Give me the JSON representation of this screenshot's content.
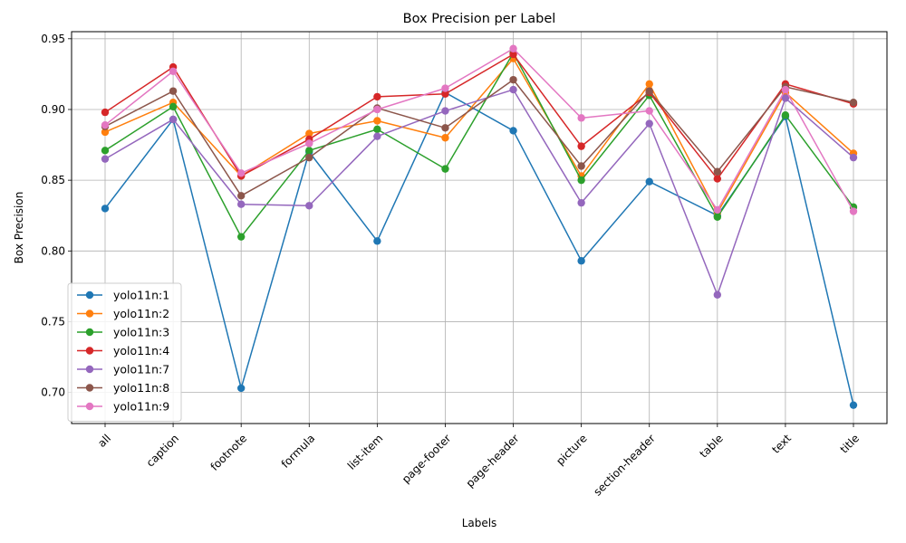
{
  "chart_data": {
    "type": "line",
    "title": "Box Precision per Label",
    "xlabel": "Labels",
    "ylabel": "Box Precision",
    "ylim": [
      0.678,
      0.955
    ],
    "yticks": [
      0.7,
      0.75,
      0.8,
      0.85,
      0.9,
      0.95
    ],
    "ytick_labels": [
      "0.70",
      "0.75",
      "0.80",
      "0.85",
      "0.90",
      "0.95"
    ],
    "grid": true,
    "legend_position": "bottom-left",
    "categories": [
      "all",
      "caption",
      "footnote",
      "formula",
      "list-item",
      "page-footer",
      "page-header",
      "picture",
      "section-header",
      "table",
      "text",
      "title"
    ],
    "series": [
      {
        "name": "yolo11n:1",
        "color": "#1f77b4",
        "values": [
          0.83,
          0.893,
          0.703,
          0.87,
          0.807,
          0.912,
          0.885,
          0.793,
          0.849,
          0.825,
          0.895,
          0.691
        ]
      },
      {
        "name": "yolo11n:2",
        "color": "#ff7f0e",
        "values": [
          0.884,
          0.905,
          0.853,
          0.883,
          0.892,
          0.88,
          0.936,
          0.853,
          0.918,
          0.827,
          0.912,
          0.869
        ]
      },
      {
        "name": "yolo11n:3",
        "color": "#2ca02c",
        "values": [
          0.871,
          0.902,
          0.81,
          0.871,
          0.886,
          0.858,
          0.94,
          0.85,
          0.91,
          0.824,
          0.896,
          0.831
        ]
      },
      {
        "name": "yolo11n:4",
        "color": "#d62728",
        "values": [
          0.898,
          0.93,
          0.853,
          0.879,
          0.909,
          0.911,
          0.939,
          0.874,
          0.912,
          0.851,
          0.918,
          0.904
        ]
      },
      {
        "name": "yolo11n:7",
        "color": "#9467bd",
        "values": [
          0.865,
          0.893,
          0.833,
          0.832,
          0.881,
          0.899,
          0.914,
          0.834,
          0.89,
          0.769,
          0.908,
          0.866
        ]
      },
      {
        "name": "yolo11n:8",
        "color": "#8c564b",
        "values": [
          0.888,
          0.913,
          0.839,
          0.866,
          0.901,
          0.887,
          0.921,
          0.86,
          0.913,
          0.856,
          0.916,
          0.905
        ]
      },
      {
        "name": "yolo11n:9",
        "color": "#e377c2",
        "values": [
          0.889,
          0.927,
          0.855,
          0.876,
          0.9,
          0.915,
          0.943,
          0.894,
          0.899,
          0.829,
          0.914,
          0.828
        ]
      }
    ]
  }
}
